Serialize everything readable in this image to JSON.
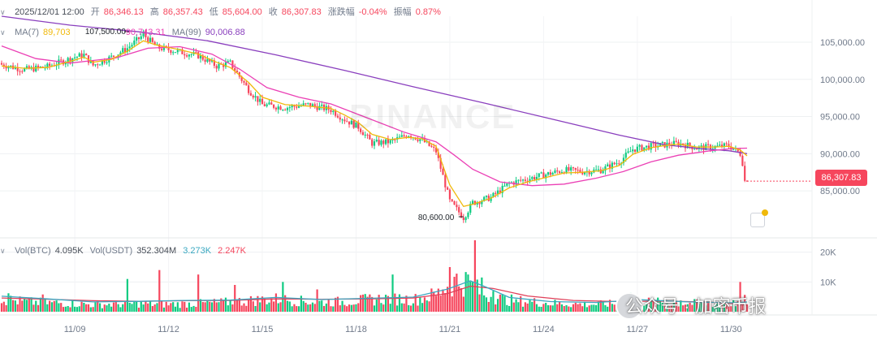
{
  "header": {
    "datetime": "2025/12/01 12:00",
    "open_label": "开",
    "open": "86,346.13",
    "high_label": "高",
    "high": "86,357.43",
    "low_label": "低",
    "low": "85,604.00",
    "close_label": "收",
    "close": "86,307.83",
    "change_label": "涨跌幅",
    "change": "-0.04%",
    "amplitude_label": "振幅",
    "amplitude": "0.87%"
  },
  "ma": {
    "ma7_label": "MA(7)",
    "ma7_value": "89,703",
    "ma25_value": "90,743.31",
    "ma99_label": "MA(99)",
    "ma99_value": "90,006.88"
  },
  "volume_header": {
    "vol_btc_label": "Vol(BTC)",
    "vol_btc": "4.095K",
    "vol_usdt_label": "Vol(USDT)",
    "vol_usdt": "352.304M",
    "vol_ma5": "3.273K",
    "vol_ma10": "2.247K"
  },
  "annotations": {
    "high_mark": "107,500.00",
    "low_mark": "80,600.00"
  },
  "last_price": "86,307.83",
  "watermark": "BINANCE",
  "overlay_text": "公众号 · 加密币报",
  "colors": {
    "up": "#0ecb81",
    "down": "#f6465d",
    "ma7": "#f0b90b",
    "ma25": "#eb40b5",
    "ma99": "#8a3fbe",
    "vol_ma5": "#3aa8c1",
    "vol_ma10": "#e0405a"
  },
  "chart_data": {
    "type": "candlestick",
    "interval": "hourly",
    "price_axis": {
      "ticks": [
        "105,000.00",
        "100,000.00",
        "95,000.00",
        "90,000.00",
        "85,000.00"
      ],
      "tick_values": [
        105000,
        100000,
        95000,
        90000,
        85000
      ],
      "range": [
        79000,
        108500
      ]
    },
    "volume_axis": {
      "ticks": [
        "20K",
        "10K"
      ],
      "tick_values": [
        20000,
        10000
      ],
      "range": [
        0,
        24000
      ]
    },
    "x_ticks": [
      "11/09",
      "11/12",
      "11/15",
      "11/18",
      "11/21",
      "11/24",
      "11/27",
      "11/30"
    ],
    "x_tick_candle_index": [
      32,
      73,
      114,
      155,
      196,
      237,
      278,
      319
    ],
    "close_path": [
      [
        0,
        102000
      ],
      [
        10,
        101300
      ],
      [
        20,
        101700
      ],
      [
        32,
        103000
      ],
      [
        36,
        103300
      ],
      [
        40,
        101900
      ],
      [
        48,
        103000
      ],
      [
        55,
        104200
      ],
      [
        62,
        106000
      ],
      [
        68,
        104300
      ],
      [
        78,
        103700
      ],
      [
        86,
        103200
      ],
      [
        94,
        101800
      ],
      [
        100,
        102200
      ],
      [
        108,
        98600
      ],
      [
        114,
        96600
      ],
      [
        124,
        96200
      ],
      [
        134,
        96600
      ],
      [
        144,
        95900
      ],
      [
        150,
        94600
      ],
      [
        156,
        93600
      ],
      [
        162,
        91400
      ],
      [
        170,
        91600
      ],
      [
        178,
        92600
      ],
      [
        184,
        91800
      ],
      [
        190,
        90300
      ],
      [
        196,
        83600
      ],
      [
        202,
        81400
      ],
      [
        206,
        83400
      ],
      [
        214,
        84100
      ],
      [
        222,
        86000
      ],
      [
        230,
        86600
      ],
      [
        238,
        87200
      ],
      [
        246,
        87800
      ],
      [
        254,
        87600
      ],
      [
        262,
        87800
      ],
      [
        270,
        88900
      ],
      [
        276,
        90600
      ],
      [
        284,
        91000
      ],
      [
        290,
        91200
      ],
      [
        296,
        91400
      ],
      [
        304,
        90800
      ],
      [
        312,
        90900
      ],
      [
        318,
        91100
      ],
      [
        323,
        90000
      ],
      [
        326,
        86400
      ]
    ],
    "ma7_path": [
      [
        0,
        101800
      ],
      [
        10,
        101500
      ],
      [
        20,
        101600
      ],
      [
        32,
        102600
      ],
      [
        36,
        103000
      ],
      [
        40,
        102300
      ],
      [
        48,
        102700
      ],
      [
        55,
        103800
      ],
      [
        62,
        105200
      ],
      [
        68,
        104600
      ],
      [
        78,
        104000
      ],
      [
        86,
        103400
      ],
      [
        94,
        102300
      ],
      [
        100,
        101600
      ],
      [
        108,
        99600
      ],
      [
        114,
        97600
      ],
      [
        124,
        96600
      ],
      [
        134,
        96400
      ],
      [
        144,
        96100
      ],
      [
        150,
        95200
      ],
      [
        156,
        94200
      ],
      [
        162,
        92600
      ],
      [
        170,
        91900
      ],
      [
        178,
        92200
      ],
      [
        184,
        92000
      ],
      [
        190,
        91000
      ],
      [
        196,
        85800
      ],
      [
        202,
        82900
      ],
      [
        206,
        83200
      ],
      [
        214,
        84000
      ],
      [
        222,
        85400
      ],
      [
        230,
        86200
      ],
      [
        238,
        86800
      ],
      [
        246,
        87400
      ],
      [
        254,
        87500
      ],
      [
        262,
        87700
      ],
      [
        270,
        88400
      ],
      [
        276,
        89900
      ],
      [
        284,
        90800
      ],
      [
        290,
        91100
      ],
      [
        296,
        91300
      ],
      [
        304,
        90900
      ],
      [
        312,
        90900
      ],
      [
        318,
        91000
      ],
      [
        323,
        90500
      ],
      [
        326,
        89703
      ]
    ],
    "ma25_path": [
      [
        0,
        104500
      ],
      [
        15,
        102800
      ],
      [
        30,
        102200
      ],
      [
        50,
        102900
      ],
      [
        64,
        104200
      ],
      [
        78,
        104400
      ],
      [
        92,
        103400
      ],
      [
        104,
        101400
      ],
      [
        116,
        98900
      ],
      [
        130,
        97600
      ],
      [
        144,
        96700
      ],
      [
        160,
        94800
      ],
      [
        176,
        92900
      ],
      [
        190,
        91600
      ],
      [
        198,
        89800
      ],
      [
        206,
        87900
      ],
      [
        218,
        86200
      ],
      [
        232,
        85700
      ],
      [
        246,
        85900
      ],
      [
        260,
        86700
      ],
      [
        272,
        87600
      ],
      [
        284,
        88900
      ],
      [
        296,
        89800
      ],
      [
        310,
        90400
      ],
      [
        320,
        90700
      ],
      [
        326,
        90743
      ]
    ],
    "ma99_path": [
      [
        0,
        108500
      ],
      [
        30,
        107300
      ],
      [
        60,
        106400
      ],
      [
        90,
        105200
      ],
      [
        120,
        103300
      ],
      [
        150,
        101200
      ],
      [
        180,
        99000
      ],
      [
        210,
        96900
      ],
      [
        240,
        94700
      ],
      [
        270,
        92500
      ],
      [
        290,
        91200
      ],
      [
        305,
        90700
      ],
      [
        318,
        90400
      ],
      [
        326,
        90007
      ]
    ],
    "volume_path": [
      [
        0,
        4500
      ],
      [
        10,
        3500
      ],
      [
        20,
        3200
      ],
      [
        30,
        3000
      ],
      [
        40,
        2500
      ],
      [
        50,
        2700
      ],
      [
        60,
        2900
      ],
      [
        70,
        2600
      ],
      [
        80,
        2800
      ],
      [
        90,
        3000
      ],
      [
        100,
        3400
      ],
      [
        110,
        4000
      ],
      [
        120,
        4500
      ],
      [
        130,
        3800
      ],
      [
        140,
        3400
      ],
      [
        150,
        3600
      ],
      [
        160,
        4200
      ],
      [
        170,
        4800
      ],
      [
        180,
        4200
      ],
      [
        190,
        6000
      ],
      [
        196,
        9500
      ],
      [
        200,
        11500
      ],
      [
        204,
        10000
      ],
      [
        210,
        6500
      ],
      [
        220,
        4200
      ],
      [
        230,
        3600
      ],
      [
        240,
        3000
      ],
      [
        250,
        2700
      ],
      [
        260,
        2600
      ],
      [
        270,
        2900
      ],
      [
        280,
        3600
      ],
      [
        290,
        3200
      ],
      [
        300,
        3000
      ],
      [
        310,
        2800
      ],
      [
        320,
        3100
      ],
      [
        326,
        4095
      ]
    ],
    "volume_spikes": [
      [
        3,
        6200
      ],
      [
        18,
        5800
      ],
      [
        55,
        11000
      ],
      [
        69,
        14000
      ],
      [
        86,
        12500
      ],
      [
        102,
        9000
      ],
      [
        123,
        10000
      ],
      [
        138,
        7500
      ],
      [
        171,
        12500
      ],
      [
        193,
        7500
      ],
      [
        196,
        15000
      ],
      [
        200,
        8500
      ],
      [
        204,
        12500
      ],
      [
        207,
        24000
      ],
      [
        210,
        11500
      ],
      [
        215,
        7000
      ],
      [
        225,
        4200
      ],
      [
        275,
        6500
      ],
      [
        297,
        3800
      ],
      [
        316,
        2500
      ],
      [
        323,
        10000
      ]
    ],
    "vol_ma5_path": [
      [
        0,
        5200
      ],
      [
        20,
        4300
      ],
      [
        40,
        3300
      ],
      [
        60,
        3500
      ],
      [
        80,
        3800
      ],
      [
        100,
        3900
      ],
      [
        120,
        4800
      ],
      [
        140,
        4100
      ],
      [
        160,
        4500
      ],
      [
        180,
        4900
      ],
      [
        195,
        7600
      ],
      [
        205,
        10400
      ],
      [
        212,
        8200
      ],
      [
        222,
        4800
      ],
      [
        240,
        3400
      ],
      [
        260,
        3100
      ],
      [
        280,
        4000
      ],
      [
        300,
        3300
      ],
      [
        320,
        3000
      ],
      [
        326,
        3273
      ]
    ],
    "vol_ma10_path": [
      [
        0,
        4600
      ],
      [
        20,
        4200
      ],
      [
        40,
        3700
      ],
      [
        60,
        3500
      ],
      [
        80,
        3700
      ],
      [
        100,
        3800
      ],
      [
        120,
        4300
      ],
      [
        140,
        4200
      ],
      [
        160,
        4300
      ],
      [
        180,
        4600
      ],
      [
        195,
        6100
      ],
      [
        205,
        8600
      ],
      [
        215,
        7800
      ],
      [
        230,
        5300
      ],
      [
        250,
        3800
      ],
      [
        270,
        3400
      ],
      [
        290,
        3600
      ],
      [
        310,
        3200
      ],
      [
        320,
        2700
      ],
      [
        326,
        2247
      ]
    ]
  }
}
